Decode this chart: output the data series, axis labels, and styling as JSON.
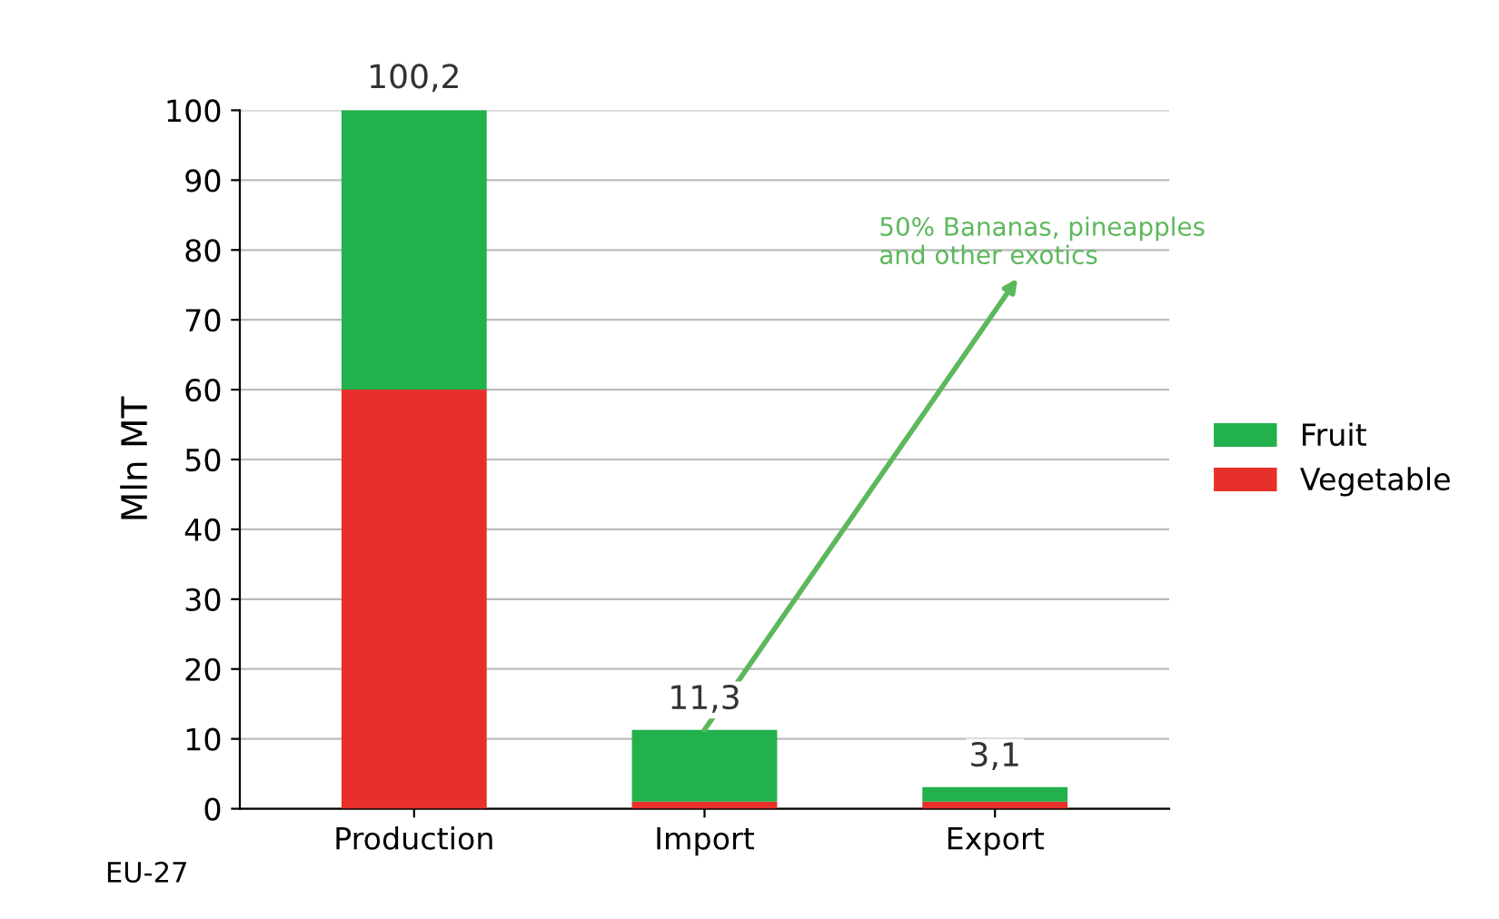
{
  "chart_data": {
    "type": "bar",
    "stacked": true,
    "ylabel": "Mln MT",
    "categories": [
      "Production",
      "Import",
      "Export"
    ],
    "series": [
      {
        "name": "Vegetable",
        "color": "#e8302a",
        "values": [
          60,
          1,
          1
        ]
      },
      {
        "name": "Fruit",
        "color": "#22b14c",
        "values": [
          40.2,
          10.3,
          2.1
        ]
      }
    ],
    "totals": [
      "100,2",
      "11,3",
      "3,1"
    ],
    "ylim": [
      0,
      100
    ],
    "yticks": [
      0,
      10,
      20,
      30,
      40,
      50,
      60,
      70,
      80,
      90,
      100
    ],
    "grid": "y",
    "legend": "right",
    "annotations": [
      {
        "text": "50% Bananas, pineapples\nand other exotics",
        "x": "Import",
        "y": 11.3
      },
      "EU-27"
    ]
  }
}
